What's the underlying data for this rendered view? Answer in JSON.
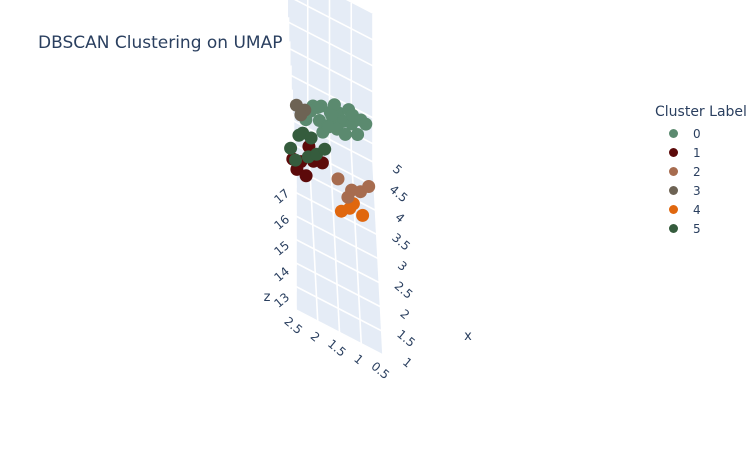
{
  "chart_data": {
    "type": "scatter3d",
    "title": "DBSCAN Clustering on UMAP",
    "axes": {
      "x": {
        "label": "x",
        "ticks": [
          "1",
          "1.5",
          "2",
          "2.5",
          "3",
          "3.5",
          "4",
          "4.5",
          "5"
        ]
      },
      "y": {
        "label": "",
        "ticks": [
          "0.5",
          "1",
          "1.5",
          "2",
          "2.5"
        ]
      },
      "z": {
        "label": "z",
        "ticks": [
          "13",
          "14",
          "15",
          "16",
          "17"
        ]
      }
    },
    "legend_title": "Cluster Label",
    "legend_placement": "top-right",
    "series": [
      {
        "name": "0",
        "color": "#5b8a6f",
        "points": [
          [
            4.6,
            1.2,
            14.0
          ],
          [
            4.3,
            1.4,
            14.3
          ],
          [
            4.8,
            1.0,
            13.7
          ],
          [
            4.0,
            1.6,
            14.6
          ],
          [
            4.5,
            1.8,
            14.2
          ],
          [
            4.7,
            1.5,
            13.9
          ],
          [
            3.9,
            1.2,
            14.8
          ],
          [
            4.2,
            0.9,
            14.5
          ],
          [
            4.9,
            1.7,
            13.6
          ],
          [
            4.4,
            2.0,
            14.1
          ],
          [
            3.8,
            1.8,
            15.0
          ],
          [
            4.1,
            1.5,
            14.9
          ],
          [
            4.6,
            0.8,
            14.4
          ],
          [
            5.0,
            1.3,
            13.5
          ],
          [
            4.3,
            1.1,
            15.1
          ],
          [
            3.7,
            1.4,
            15.2
          ],
          [
            4.0,
            2.1,
            14.4
          ],
          [
            4.7,
            1.9,
            13.8
          ],
          [
            4.4,
            0.7,
            14.7
          ],
          [
            3.6,
            1.6,
            15.3
          ],
          [
            4.8,
            1.4,
            14.1
          ],
          [
            4.2,
            1.7,
            13.9
          ],
          [
            4.5,
            1.0,
            14.6
          ],
          [
            3.9,
            2.0,
            15.0
          ]
        ]
      },
      {
        "name": "1",
        "color": "#5c0a0a",
        "points": [
          [
            2.5,
            2.3,
            15.4
          ],
          [
            2.7,
            2.0,
            15.3
          ],
          [
            2.3,
            2.5,
            15.7
          ],
          [
            2.2,
            2.2,
            15.5
          ],
          [
            2.6,
            1.8,
            15.6
          ],
          [
            2.4,
            2.4,
            15.2
          ],
          [
            2.8,
            2.1,
            15.6
          ]
        ]
      },
      {
        "name": "2",
        "color": "#a76c4f",
        "points": [
          [
            1.3,
            1.0,
            17.6
          ],
          [
            1.1,
            1.3,
            17.5
          ],
          [
            1.5,
            0.8,
            17.6
          ],
          [
            1.4,
            1.2,
            17.3
          ],
          [
            1.6,
            1.5,
            17.1
          ]
        ]
      },
      {
        "name": "3",
        "color": "#6d6354",
        "points": [
          [
            2.5,
            2.3,
            17.2
          ],
          [
            2.6,
            2.4,
            17.3
          ],
          [
            2.7,
            2.2,
            17.1
          ]
        ]
      },
      {
        "name": "4",
        "color": "#e0670e",
        "points": [
          [
            2.1,
            1.2,
            15.3
          ],
          [
            2.2,
            0.9,
            15.1
          ],
          [
            2.0,
            1.4,
            15.2
          ],
          [
            2.4,
            1.1,
            15.0
          ]
        ]
      },
      {
        "name": "5",
        "color": "#355c3d",
        "points": [
          [
            1.6,
            2.4,
            18.0
          ],
          [
            1.3,
            2.2,
            17.9
          ],
          [
            1.5,
            2.0,
            17.8
          ],
          [
            1.8,
            2.3,
            17.8
          ],
          [
            1.2,
            2.5,
            17.7
          ],
          [
            1.7,
            1.8,
            17.8
          ],
          [
            1.4,
            2.6,
            17.7
          ],
          [
            1.9,
            2.1,
            17.6
          ]
        ]
      }
    ]
  }
}
